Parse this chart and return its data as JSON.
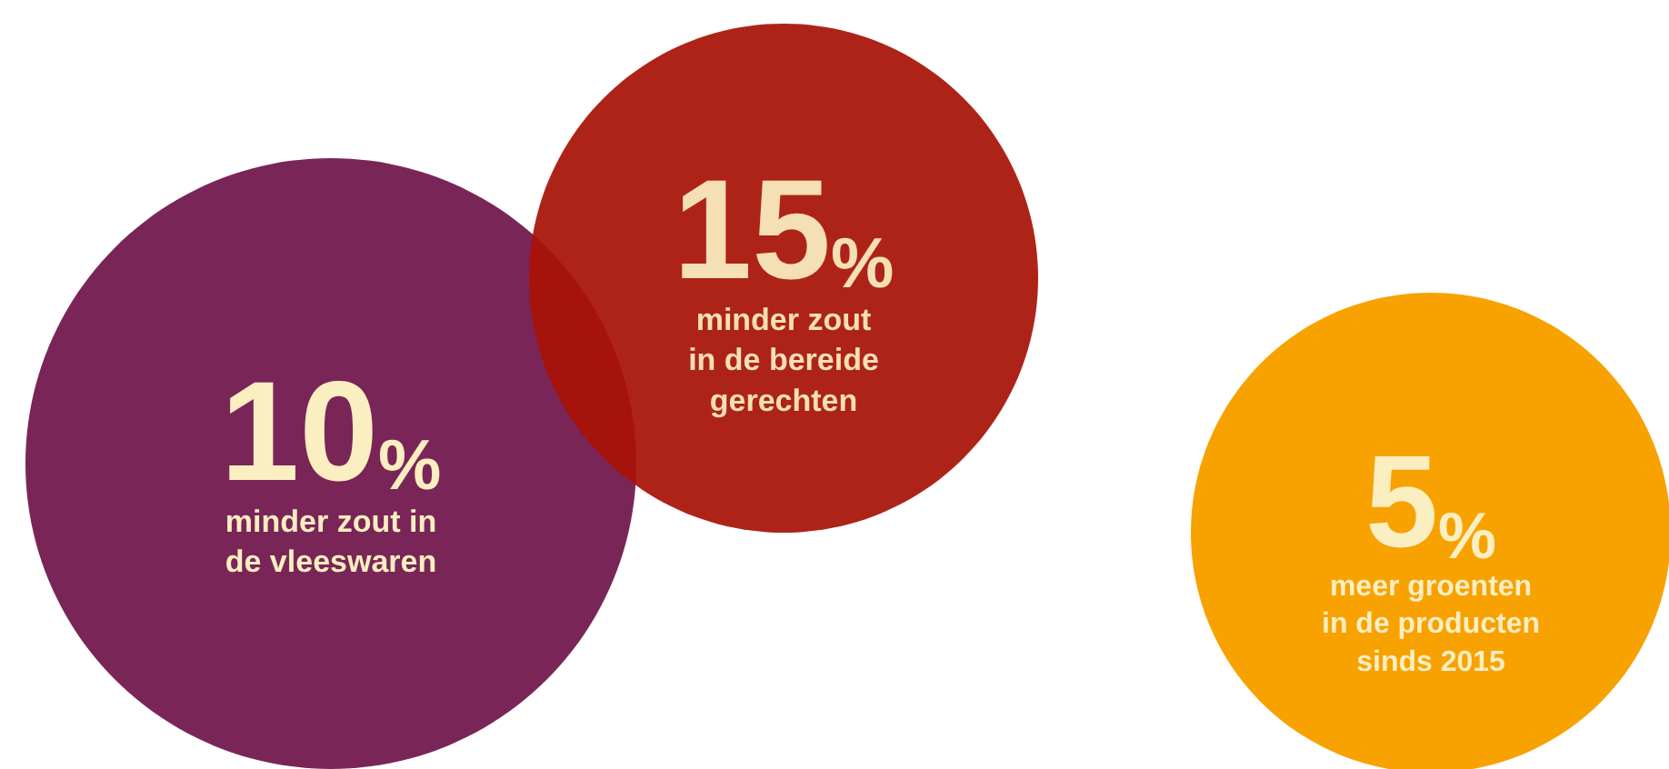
{
  "chart_data": {
    "type": "other",
    "categories": [
      "minder zout in\nde vleeswaren",
      "minder zout\nin de bereide\ngerechten",
      "meer groenten\nin de producten\nsinds 2015"
    ],
    "values": [
      10,
      15,
      5
    ],
    "value_labels": [
      "10%",
      "15%",
      "5%"
    ],
    "colors": [
      "#7a2557",
      "#a81206",
      "#f7a200"
    ]
  }
}
